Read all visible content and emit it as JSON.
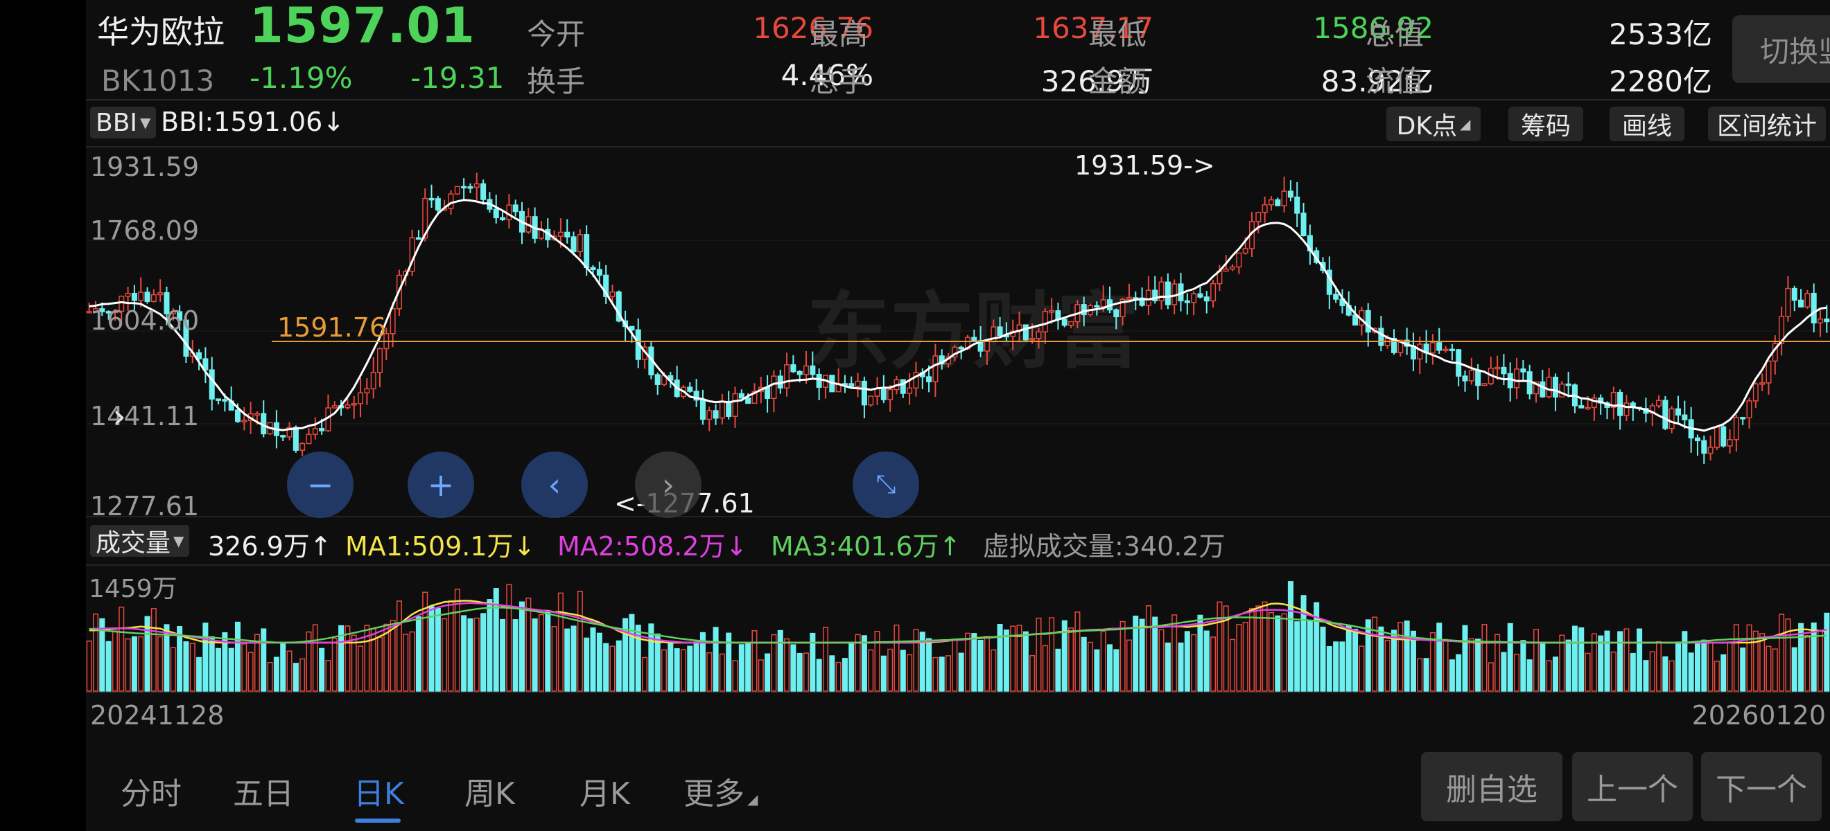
{
  "stock": {
    "name": "华为欧拉",
    "code": "BK1013",
    "price": "1597.01",
    "change_pct": "-1.19%",
    "change": "-19.31"
  },
  "quote": {
    "row1": [
      {
        "label": "今开",
        "value": "1626.76",
        "color": "red"
      },
      {
        "label": "最高",
        "value": "1637.17",
        "color": "red"
      },
      {
        "label": "最低",
        "value": "1586.92",
        "color": "green"
      },
      {
        "label": "总值",
        "value": "2533亿",
        "color": "white"
      }
    ],
    "row2": [
      {
        "label": "换手",
        "value": "4.46%",
        "color": "white"
      },
      {
        "label": "总手",
        "value": "326.9万",
        "color": "white"
      },
      {
        "label": "金额",
        "value": "83.92亿",
        "color": "white"
      },
      {
        "label": "流值",
        "value": "2280亿",
        "color": "white"
      }
    ]
  },
  "toggle_button": "切换竖屏",
  "toolbar": {
    "indicator": "BBI",
    "indicator_value": "BBI:1591.06↓",
    "buttons": [
      "DK点",
      "筹码",
      "画线",
      "区间统计"
    ]
  },
  "kchart": {
    "y_labels": [
      "1931.59",
      "1768.09",
      "1604.60",
      "1441.11",
      "1277.61"
    ],
    "high_marker": "1931.59->",
    "low_marker": "<-1277.61",
    "current_line_label": "1591.76",
    "watermark": "东方财富"
  },
  "volume": {
    "dropdown": "成交量",
    "value": "326.9万↑",
    "ma1": "MA1:509.1万↓",
    "ma2": "MA2:508.2万↓",
    "ma3": "MA3:401.6万↑",
    "virtual": "虚拟成交量:340.2万",
    "y_max_label": "1459万"
  },
  "dates": {
    "start": "20241128",
    "end": "20260120"
  },
  "tabs": [
    "分时",
    "五日",
    "日K",
    "周K",
    "月K",
    "更多"
  ],
  "active_tab": "日K",
  "bottom_buttons": [
    "删自选",
    "上一个",
    "下一个"
  ],
  "colors": {
    "up": "#e8493d",
    "down": "#6ff0f0",
    "price_green": "#4dd35a",
    "ma1": "#f5e44a",
    "ma2": "#e040e0",
    "ma3": "#5fcf5f",
    "accent": "#3d7fe0",
    "current_line": "#e89b3a"
  }
}
